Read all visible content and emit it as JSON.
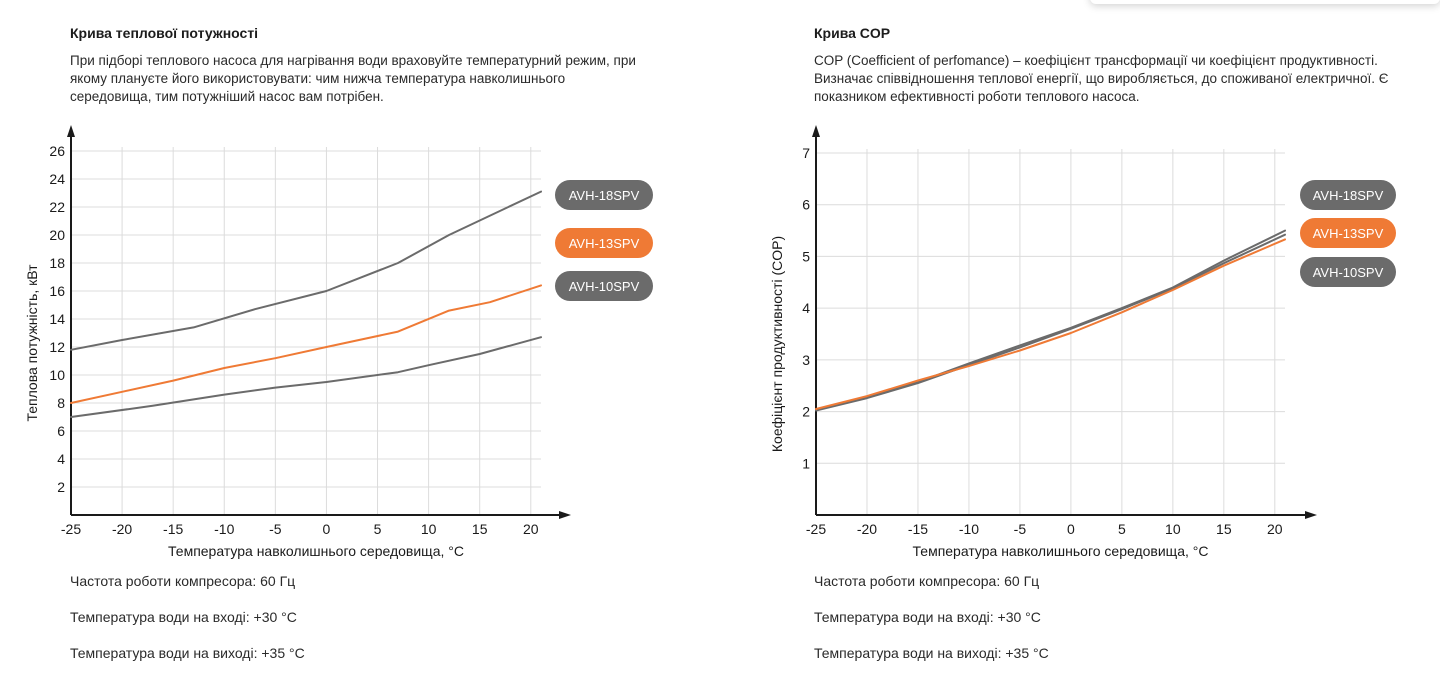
{
  "left": {
    "title": "Крива теплової потужності",
    "description": "При підборі теплового насоса для нагрівання води враховуйте температурний режим, при якому плануєте його використовувати: чим нижча температура навколишнього середовища, тим потужніший насос вам потрібен.",
    "notes": [
      "Частота роботи компресора: 60 Гц",
      "Температура води на вході: +30 °С",
      "Температура води на виході: +35 °С"
    ]
  },
  "right": {
    "title": "Крива COP",
    "description": "COP (Coefficient of perfomance) – коефіцієнт трансформації чи коефіцієнт продуктивності. Визначає співвідношення теплової енергії, що виробляється, до споживаної електричної. Є показником ефективності роботи теплового насоса.",
    "notes": [
      "Частота роботи компресора: 60 Гц",
      "Температура води на вході: +30 °С",
      "Температура води на виході: +35 °С"
    ]
  },
  "chart_data": [
    {
      "type": "line",
      "title": "Крива теплової потужності",
      "xlabel": "Температура навколишнього середовища, °С",
      "ylabel": "Теплова потужність, кВт",
      "xlim": [
        -25,
        21
      ],
      "ylim": [
        0,
        26
      ],
      "x_ticks": [
        -25,
        -20,
        -15,
        -10,
        -5,
        0,
        5,
        10,
        15,
        20
      ],
      "y_ticks": [
        2,
        4,
        6,
        8,
        10,
        12,
        14,
        16,
        18,
        20,
        22,
        24,
        26
      ],
      "grid": true,
      "legend": "right",
      "series": [
        {
          "name": "AVH-18SPV",
          "color": "#6b6b6b",
          "points": [
            [
              -25,
              11.8
            ],
            [
              -20,
              12.5
            ],
            [
              -13,
              13.4
            ],
            [
              -7,
              14.7
            ],
            [
              0,
              16
            ],
            [
              7,
              18
            ],
            [
              12,
              20
            ],
            [
              21,
              23.1
            ]
          ]
        },
        {
          "name": "AVH-13SPV",
          "color": "#ef7a35",
          "points": [
            [
              -25,
              8
            ],
            [
              -20,
              8.8
            ],
            [
              -15,
              9.6
            ],
            [
              -10,
              10.5
            ],
            [
              -5,
              11.2
            ],
            [
              0,
              12
            ],
            [
              7,
              13.1
            ],
            [
              12,
              14.6
            ],
            [
              16,
              15.2
            ],
            [
              21,
              16.4
            ]
          ]
        },
        {
          "name": "AVH-10SPV",
          "color": "#6b6b6b",
          "points": [
            [
              -25,
              7
            ],
            [
              -17,
              7.8
            ],
            [
              -10,
              8.6
            ],
            [
              -5,
              9.1
            ],
            [
              0,
              9.5
            ],
            [
              7,
              10.2
            ],
            [
              10,
              10.7
            ],
            [
              15,
              11.5
            ],
            [
              21,
              12.7
            ]
          ]
        }
      ]
    },
    {
      "type": "line",
      "title": "Крива COP",
      "xlabel": "Температура навколишнього середовища, °С",
      "ylabel": "Коефіцієнт продуктивності (COP)",
      "xlim": [
        -25,
        21
      ],
      "ylim": [
        0,
        7
      ],
      "x_ticks": [
        -25,
        -20,
        -15,
        -10,
        -5,
        0,
        5,
        10,
        15,
        20
      ],
      "y_ticks": [
        1,
        2,
        3,
        4,
        5,
        6,
        7
      ],
      "grid": true,
      "legend": "right",
      "series": [
        {
          "name": "AVH-18SPV",
          "color": "#6b6b6b",
          "points": [
            [
              -25,
              2.03
            ],
            [
              -20,
              2.27
            ],
            [
              -15,
              2.57
            ],
            [
              -10,
              2.93
            ],
            [
              -5,
              3.28
            ],
            [
              0,
              3.62
            ],
            [
              5,
              4.0
            ],
            [
              10,
              4.4
            ],
            [
              15,
              4.92
            ],
            [
              21,
              5.5
            ]
          ]
        },
        {
          "name": "AVH-13SPV",
          "color": "#ef7a35",
          "points": [
            [
              -25,
              2.05
            ],
            [
              -20,
              2.3
            ],
            [
              -15,
              2.6
            ],
            [
              -10,
              2.88
            ],
            [
              -5,
              3.18
            ],
            [
              0,
              3.52
            ],
            [
              5,
              3.92
            ],
            [
              10,
              4.35
            ],
            [
              15,
              4.82
            ],
            [
              21,
              5.33
            ]
          ]
        },
        {
          "name": "AVH-10SPV",
          "color": "#6b6b6b",
          "points": [
            [
              -25,
              2.02
            ],
            [
              -20,
              2.26
            ],
            [
              -15,
              2.55
            ],
            [
              -10,
              2.9
            ],
            [
              -5,
              3.24
            ],
            [
              0,
              3.6
            ],
            [
              5,
              3.98
            ],
            [
              10,
              4.38
            ],
            [
              15,
              4.87
            ],
            [
              21,
              5.42
            ]
          ]
        }
      ]
    }
  ]
}
